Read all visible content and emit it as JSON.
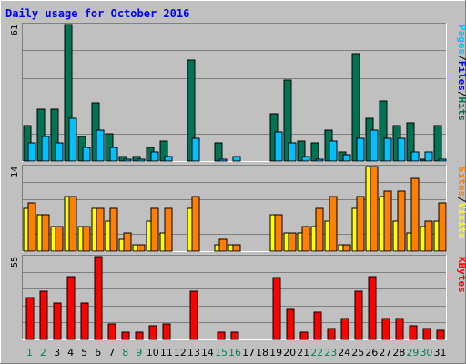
{
  "chart_data": {
    "type": "bar",
    "title": "Daily usage for October 2016",
    "categories": [
      "1",
      "2",
      "3",
      "4",
      "5",
      "6",
      "7",
      "8",
      "9",
      "10",
      "11",
      "12",
      "13",
      "14",
      "15",
      "16",
      "17",
      "18",
      "19",
      "20",
      "21",
      "22",
      "23",
      "24",
      "25",
      "26",
      "27",
      "28",
      "29",
      "30",
      "31"
    ],
    "weekend_days": [
      "1",
      "2",
      "8",
      "9",
      "15",
      "16",
      "22",
      "23",
      "29",
      "30"
    ],
    "colors": {
      "background": "#c0c0c0",
      "title": "#0000ff",
      "hits": "#007355",
      "files": "#00c0ff",
      "pages": "#00ffff",
      "visits": "#ffff00",
      "sites": "#ff8000",
      "kbytes": "#ff0000",
      "weekday_label": "#000000",
      "weekend_label": "#00805c"
    },
    "panels": [
      {
        "id": "hits",
        "max_label": "61",
        "ylim": [
          0,
          61
        ],
        "legend": [
          {
            "text": "Hits",
            "color": "#007355"
          },
          {
            "text": "Files",
            "color": "#0000ff"
          },
          {
            "text": "Pages",
            "color": "#00c0ff"
          }
        ],
        "series": [
          {
            "name": "Hits",
            "color": "#007355",
            "values": [
              16,
              23,
              23,
              61,
              11,
              26,
              12,
              2,
              2,
              6,
              9,
              0,
              45,
              0,
              8,
              0,
              0,
              0,
              21,
              36,
              9,
              8,
              14,
              4,
              48,
              19,
              27,
              16,
              17,
              1,
              16
            ]
          },
          {
            "name": "Files",
            "color": "#00c0ff",
            "values": [
              8,
              11,
              8,
              19,
              6,
              14,
              6,
              1,
              1,
              4,
              2,
              0,
              10,
              0,
              1,
              2,
              0,
              0,
              13,
              8,
              2,
              1,
              9,
              3,
              10,
              14,
              10,
              10,
              4,
              4,
              1
            ]
          }
        ]
      },
      {
        "id": "visits",
        "max_label": "14",
        "ylim": [
          0,
          14
        ],
        "legend": [
          {
            "text": "Visits",
            "color": "#ffff00"
          },
          {
            "text": "Sites",
            "color": "#ff8000"
          }
        ],
        "series": [
          {
            "name": "Visits",
            "color": "#ffff00",
            "values": [
              7,
              6,
              4,
              9,
              4,
              7,
              5,
              2,
              1,
              5,
              3,
              0,
              7,
              0,
              1,
              1,
              0,
              0,
              6,
              3,
              3,
              4,
              5,
              1,
              7,
              14,
              9,
              5,
              3,
              4,
              5
            ]
          },
          {
            "name": "Sites",
            "color": "#ff8000",
            "values": [
              8,
              6,
              4,
              9,
              4,
              7,
              7,
              3,
              1,
              7,
              7,
              0,
              9,
              0,
              2,
              1,
              0,
              0,
              6,
              3,
              4,
              7,
              9,
              1,
              9,
              14,
              10,
              10,
              12,
              5,
              8
            ]
          }
        ]
      },
      {
        "id": "kbytes",
        "max_label": "55",
        "ylim": [
          0,
          55
        ],
        "legend": [
          {
            "text": "KBytes",
            "color": "#ff0000"
          }
        ],
        "series": [
          {
            "name": "KBytes",
            "color": "#ff0000",
            "values": [
              28,
              32,
              24,
              42,
              24,
              55,
              10,
              5,
              5,
              9,
              10,
              0,
              32,
              0,
              5,
              5,
              0,
              0,
              41,
              20,
              5,
              18,
              7,
              14,
              32,
              42,
              14,
              14,
              9,
              7,
              6
            ]
          }
        ]
      }
    ]
  }
}
